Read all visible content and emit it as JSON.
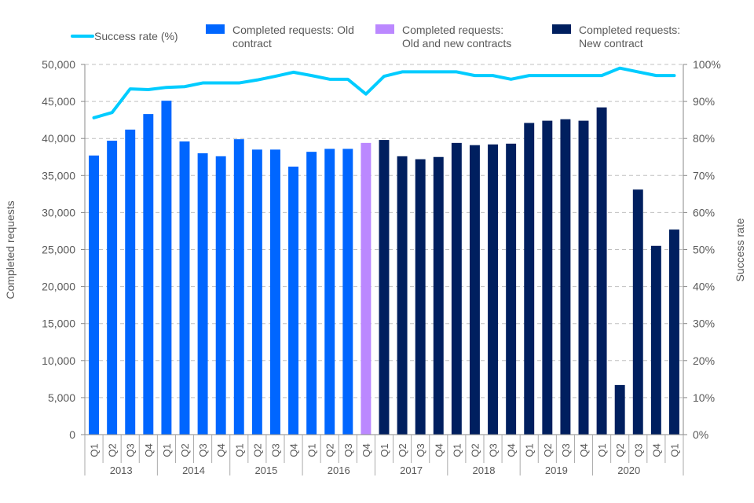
{
  "chart_data": {
    "type": "bar+line",
    "title": "",
    "ylabel": "Completed requests",
    "y2label": "Success rate",
    "ylim": [
      0,
      50000
    ],
    "y2lim": [
      0,
      100
    ],
    "yticks": [
      "0",
      "5,000",
      "10,000",
      "15,000",
      "20,000",
      "25,000",
      "30,000",
      "35,000",
      "40,000",
      "45,000",
      "50,000"
    ],
    "y2ticks": [
      "0%",
      "10%",
      "20%",
      "30%",
      "40%",
      "50%",
      "60%",
      "70%",
      "80%",
      "90%",
      "100%"
    ],
    "grid": true,
    "legend_position": "top",
    "quarters": [
      "Q1",
      "Q2",
      "Q3",
      "Q4",
      "Q1",
      "Q2",
      "Q3",
      "Q4",
      "Q1",
      "Q2",
      "Q3",
      "Q4",
      "Q1",
      "Q2",
      "Q3",
      "Q4",
      "Q1",
      "Q2",
      "Q3",
      "Q4",
      "Q1",
      "Q2",
      "Q3",
      "Q4",
      "Q1",
      "Q2",
      "Q3",
      "Q4",
      "Q1",
      "Q2",
      "Q3",
      "Q4",
      "Q1"
    ],
    "years": [
      "2013",
      "2014",
      "2015",
      "2016",
      "2017",
      "2018",
      "2019",
      "2020"
    ],
    "completed_requests": [
      37700,
      39700,
      41200,
      43300,
      45100,
      39600,
      38000,
      37600,
      39900,
      38500,
      38500,
      36200,
      38200,
      38600,
      38600,
      39400,
      39800,
      37600,
      37200,
      37500,
      39400,
      39100,
      39200,
      39300,
      42100,
      42400,
      42600,
      42400,
      44200,
      6700,
      33100,
      25500,
      27700
    ],
    "bar_series_index": [
      0,
      0,
      0,
      0,
      0,
      0,
      0,
      0,
      0,
      0,
      0,
      0,
      0,
      0,
      0,
      1,
      2,
      2,
      2,
      2,
      2,
      2,
      2,
      2,
      2,
      2,
      2,
      2,
      2,
      2,
      2,
      2,
      2
    ],
    "success_rate": [
      85.6,
      87,
      93.4,
      93.2,
      93.8,
      94,
      95,
      95,
      95,
      95.8,
      96.8,
      97.9,
      97,
      96,
      96,
      92,
      96.8,
      98,
      98,
      98,
      98,
      97,
      97,
      96,
      97,
      97,
      97,
      97,
      97,
      99,
      98,
      97,
      97
    ],
    "series": [
      {
        "name": "Success rate (%)",
        "color": "#00CCFF",
        "kind": "line"
      },
      {
        "name": "Completed requests: Old contract",
        "color": "#0066FF",
        "kind": "bar"
      },
      {
        "name": "Completed requests: Old and new contracts",
        "color": "#BB88FF",
        "kind": "bar"
      },
      {
        "name": "Completed requests: New contract",
        "color": "#001F5F",
        "kind": "bar"
      }
    ]
  },
  "legend": {
    "line": "Success rate (%)",
    "old_1": "Completed requests: Old",
    "old_2": "contract",
    "both_1": "Completed requests:",
    "both_2": "Old and new contracts",
    "new_1": "Completed requests:",
    "new_2": "New contract"
  }
}
